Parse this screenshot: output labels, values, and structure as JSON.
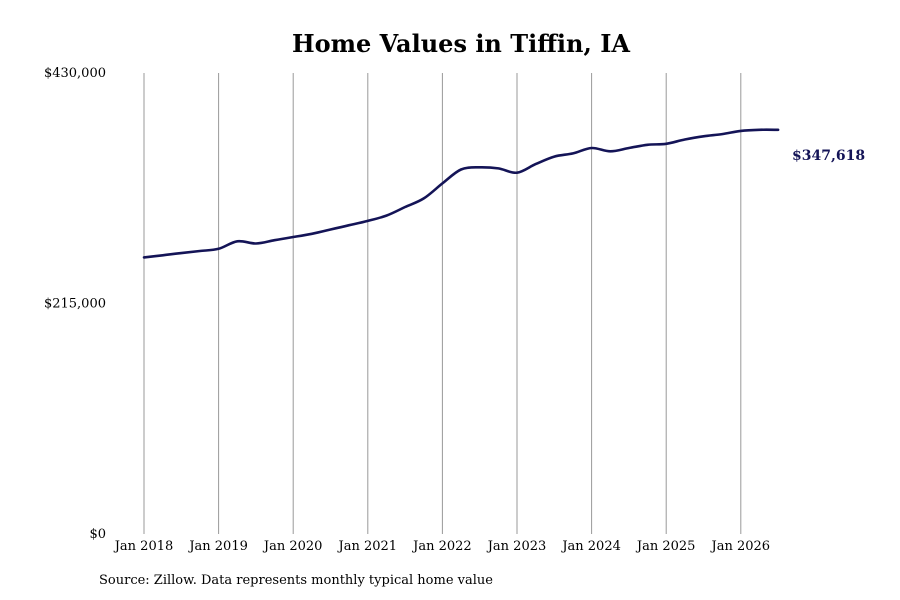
{
  "chart_data": {
    "type": "line",
    "title": "Home Values in Tiffin, IA",
    "xlabel": "",
    "ylabel": "",
    "ylim": [
      0,
      430000
    ],
    "y_ticks": [
      {
        "value": 0,
        "label": "$0"
      },
      {
        "value": 215000,
        "label": "$215,000"
      },
      {
        "value": 430000,
        "label": "$430,000"
      }
    ],
    "x_ticks": [
      {
        "value": "2018-01",
        "label": "Jan 2018"
      },
      {
        "value": "2019-01",
        "label": "Jan 2019"
      },
      {
        "value": "2020-01",
        "label": "Jan 2020"
      },
      {
        "value": "2021-01",
        "label": "Jan 2021"
      },
      {
        "value": "2022-01",
        "label": "Jan 2022"
      },
      {
        "value": "2023-01",
        "label": "Jan 2023"
      },
      {
        "value": "2024-01",
        "label": "Jan 2024"
      },
      {
        "value": "2025-01",
        "label": "Jan 2025"
      },
      {
        "value": "2026-01",
        "label": "Jan 2026"
      }
    ],
    "grid": "vertical",
    "line_color": "#141457",
    "grid_color": "#999999",
    "end_label": "$347,618",
    "series": [
      {
        "x": [
          "2018-01",
          "2018-04",
          "2018-07",
          "2018-10",
          "2019-01",
          "2019-04",
          "2019-07",
          "2019-10",
          "2020-01",
          "2020-04",
          "2020-07",
          "2020-10",
          "2021-01",
          "2021-04",
          "2021-07",
          "2021-10",
          "2022-01",
          "2022-04",
          "2022-07",
          "2022-10",
          "2023-01",
          "2023-04",
          "2023-07",
          "2023-10",
          "2024-01",
          "2024-04",
          "2024-07",
          "2024-10",
          "2025-01",
          "2025-04",
          "2025-07",
          "2025-10",
          "2026-01",
          "2026-04",
          "2026-07"
        ],
        "y": [
          258000,
          260000,
          262000,
          264000,
          266000,
          273000,
          271000,
          274000,
          277000,
          280000,
          284000,
          288000,
          292000,
          297000,
          305000,
          313000,
          327000,
          340000,
          342000,
          341000,
          337000,
          345000,
          352000,
          355000,
          360000,
          357000,
          360000,
          363000,
          364000,
          368000,
          371000,
          373000,
          376000,
          377000,
          347618
        ]
      }
    ]
  },
  "source_text": "Source: Zillow. Data represents monthly typical home value"
}
